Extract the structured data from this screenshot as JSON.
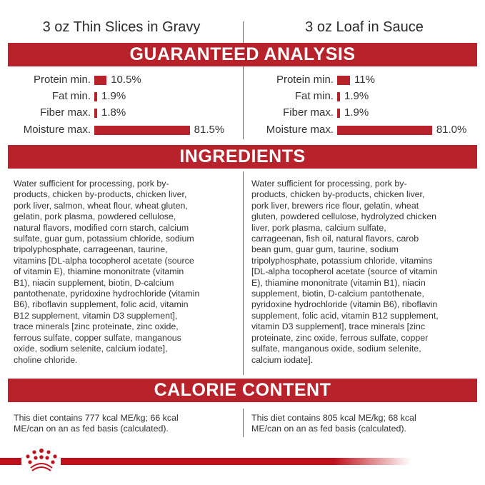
{
  "products": [
    {
      "title": "3 oz Thin Slices in Gravy",
      "analysis": [
        {
          "label": "Protein min.",
          "value": "10.5%",
          "percent": 10.5
        },
        {
          "label": "Fat min.",
          "value": "1.9%",
          "percent": 1.9
        },
        {
          "label": "Fiber max.",
          "value": "1.8%",
          "percent": 1.8
        },
        {
          "label": "Moisture max.",
          "value": "81.5%",
          "percent": 81.5
        }
      ],
      "ingredients": [
        "Water sufficient for processing, pork by-",
        "products, chicken by-products, chicken liver,",
        "pork liver, salmon, wheat flour, wheat gluten,",
        "gelatin, pork plasma, powdered cellulose,",
        "natural flavors, modified corn starch, calcium",
        "sulfate, guar gum, potassium chloride, sodium",
        "tripolyphosphate, carrageenan, taurine,",
        "vitamins [DL-alpha tocopherol acetate (source",
        "of vitamin E), thiamine mononitrate (vitamin",
        "B1), niacin supplement, biotin, D-calcium",
        "pantothenate, pyridoxine hydrochloride (vitamin",
        "B6), riboflavin supplement, folic acid, vitamin",
        "B12 supplement, vitamin D3 supplement],",
        "trace minerals [zinc proteinate, zinc oxide,",
        "ferrous sulfate, copper sulfate, manganous",
        "oxide, sodium selenite, calcium iodate],",
        "choline chloride."
      ],
      "calorie": [
        "This diet contains 777 kcal ME/kg; 66 kcal",
        "ME/can on an as fed basis (calculated)."
      ]
    },
    {
      "title": "3 oz Loaf in Sauce",
      "analysis": [
        {
          "label": "Protein min.",
          "value": "11%",
          "percent": 11
        },
        {
          "label": "Fat min.",
          "value": "1.9%",
          "percent": 1.9
        },
        {
          "label": "Fiber max.",
          "value": "1.9%",
          "percent": 1.9
        },
        {
          "label": "Moisture max.",
          "value": "81.0%",
          "percent": 81.0
        }
      ],
      "ingredients": [
        "Water sufficient for processing, pork by-",
        "products, chicken by-products, chicken liver,",
        "pork liver, brewers rice flour, gelatin, wheat",
        "gluten, powdered cellulose, hydrolyzed chicken",
        "liver, pork plasma, calcium sulfate,",
        "carrageenan, fish oil, natural flavors, carob",
        "bean gum, guar gum, taurine, sodium",
        "tripolyphosphate, potassium chloride, vitamins",
        "[DL-alpha tocopherol acetate (source of vitamin",
        "E), thiamine mononitrate (vitamin B1), niacin",
        "supplement, biotin, D-calcium pantothenate,",
        "pyridoxine hydrochloride (vitamin B6), riboflavin",
        "supplement, folic acid, vitamin B12 supplement,",
        "vitamin D3 supplement], trace minerals [zinc",
        "proteinate, zinc oxide, ferrous sulfate, copper",
        "sulfate, manganous oxide, sodium selenite,",
        "calcium iodate]."
      ],
      "calorie": [
        "This diet contains 805 kcal ME/kg; 68 kcal",
        "ME/can on an as fed basis (calculated)."
      ]
    }
  ],
  "sections": {
    "analysis": "GUARANTEED ANALYSIS",
    "ingredients": "INGREDIENTS",
    "calorie": "CALORIE CONTENT"
  },
  "colors": {
    "brand_red": "#b7222b"
  },
  "logo": {
    "name": "royal-canin-crown-logo"
  }
}
